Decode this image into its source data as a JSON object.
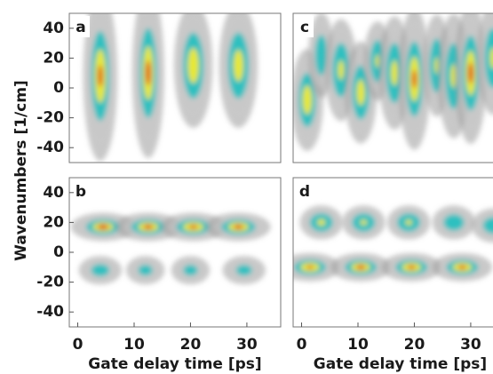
{
  "chart_data": [
    {
      "type": "heatmap",
      "label": "a",
      "ylabel": "Wavenumbers [1/cm]",
      "xlim": [
        -1.5,
        36
      ],
      "ylim": [
        -50,
        50
      ],
      "yticks": [
        -40,
        -20,
        0,
        20,
        40
      ],
      "blobs": [
        {
          "x": 4,
          "y": 8,
          "width": 1.6,
          "height": 30,
          "peak": 0.9
        },
        {
          "x": 12.5,
          "y": 10,
          "width": 1.5,
          "height": 30,
          "peak": 0.95
        },
        {
          "x": 20.5,
          "y": 15,
          "width": 1.8,
          "height": 22,
          "peak": 0.75
        },
        {
          "x": 28.5,
          "y": 15,
          "width": 1.8,
          "height": 22,
          "peak": 0.7
        }
      ]
    },
    {
      "type": "heatmap",
      "label": "b",
      "xlabel": "Gate delay time [ps]",
      "xlim": [
        -1.5,
        36
      ],
      "ylim": [
        -50,
        50
      ],
      "xticks": [
        0,
        10,
        20,
        30
      ],
      "yticks": [
        -40,
        -20,
        0,
        20,
        40
      ],
      "blobs": [
        {
          "x": 4.5,
          "y": 17,
          "width": 3,
          "height": 5,
          "peak": 1
        },
        {
          "x": 12.5,
          "y": 17,
          "width": 3,
          "height": 5,
          "peak": 0.95
        },
        {
          "x": 20.5,
          "y": 17,
          "width": 3,
          "height": 5,
          "peak": 0.9
        },
        {
          "x": 28.5,
          "y": 17,
          "width": 3,
          "height": 5,
          "peak": 0.95
        },
        {
          "x": 4,
          "y": -12,
          "width": 2,
          "height": 5,
          "peak": 0.45
        },
        {
          "x": 12,
          "y": -12,
          "width": 1.8,
          "height": 5,
          "peak": 0.4
        },
        {
          "x": 20,
          "y": -12,
          "width": 1.8,
          "height": 5,
          "peak": 0.4
        },
        {
          "x": 29.5,
          "y": -12,
          "width": 2,
          "height": 5,
          "peak": 0.4
        }
      ]
    },
    {
      "type": "heatmap",
      "label": "c",
      "xlim": [
        -1.5,
        36
      ],
      "ylim": [
        -50,
        50
      ],
      "blobs": [
        {
          "x": 1,
          "y": -8,
          "width": 1.5,
          "height": 18,
          "peak": 0.75
        },
        {
          "x": 3.5,
          "y": 22,
          "width": 1.2,
          "height": 15,
          "peak": 0.5
        },
        {
          "x": 7,
          "y": 12,
          "width": 1.5,
          "height": 18,
          "peak": 0.6
        },
        {
          "x": 10.5,
          "y": -3,
          "width": 1.5,
          "height": 18,
          "peak": 0.7
        },
        {
          "x": 13.5,
          "y": 18,
          "width": 1.3,
          "height": 14,
          "peak": 0.55
        },
        {
          "x": 16.5,
          "y": 10,
          "width": 1.5,
          "height": 20,
          "peak": 0.65
        },
        {
          "x": 20,
          "y": 6,
          "width": 1.5,
          "height": 25,
          "peak": 0.9
        },
        {
          "x": 24,
          "y": 15,
          "width": 1.3,
          "height": 18,
          "peak": 0.55
        },
        {
          "x": 27,
          "y": 8,
          "width": 1.5,
          "height": 22,
          "peak": 0.6
        },
        {
          "x": 30,
          "y": 10,
          "width": 1.5,
          "height": 25,
          "peak": 0.95
        },
        {
          "x": 34,
          "y": 20,
          "width": 1.5,
          "height": 20,
          "peak": 0.6
        }
      ]
    },
    {
      "type": "heatmap",
      "label": "d",
      "xlabel": "Gate delay time [ps]",
      "xlim": [
        -1.5,
        36
      ],
      "ylim": [
        -50,
        50
      ],
      "xticks": [
        0,
        10,
        20,
        30
      ],
      "blobs": [
        {
          "x": 3.5,
          "y": 20,
          "width": 2,
          "height": 6,
          "peak": 0.6
        },
        {
          "x": 11,
          "y": 20,
          "width": 2,
          "height": 6,
          "peak": 0.55
        },
        {
          "x": 19,
          "y": 20,
          "width": 2,
          "height": 6,
          "peak": 0.55
        },
        {
          "x": 27,
          "y": 20,
          "width": 2,
          "height": 6,
          "peak": 0.5
        },
        {
          "x": 34,
          "y": 18,
          "width": 2,
          "height": 6,
          "peak": 0.5
        },
        {
          "x": 1.5,
          "y": -10,
          "width": 2.8,
          "height": 5,
          "peak": 0.85
        },
        {
          "x": 10.5,
          "y": -10,
          "width": 2.8,
          "height": 5,
          "peak": 0.95
        },
        {
          "x": 19.5,
          "y": -10,
          "width": 2.8,
          "height": 5,
          "peak": 0.9
        },
        {
          "x": 28.5,
          "y": -10,
          "width": 2.8,
          "height": 5,
          "peak": 0.9
        }
      ]
    }
  ]
}
